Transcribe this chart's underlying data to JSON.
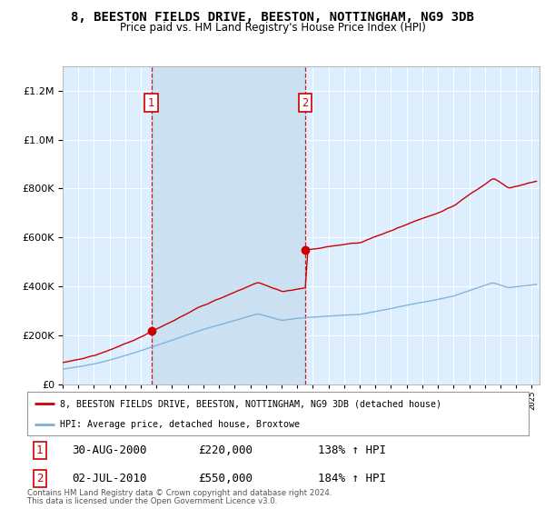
{
  "title": "8, BEESTON FIELDS DRIVE, BEESTON, NOTTINGHAM, NG9 3DB",
  "subtitle": "Price paid vs. HM Land Registry's House Price Index (HPI)",
  "hpi_label": "HPI: Average price, detached house, Broxtowe",
  "property_label": "8, BEESTON FIELDS DRIVE, BEESTON, NOTTINGHAM, NG9 3DB (detached house)",
  "footnote1": "Contains HM Land Registry data © Crown copyright and database right 2024.",
  "footnote2": "This data is licensed under the Open Government Licence v3.0.",
  "sale1_date": "30-AUG-2000",
  "sale1_price": 220000,
  "sale1_hpi": "138% ↑ HPI",
  "sale2_date": "02-JUL-2010",
  "sale2_price": 550000,
  "sale2_hpi": "184% ↑ HPI",
  "hpi_color": "#7aaed6",
  "property_color": "#cc0000",
  "background_color": "#ddeeff",
  "shade_color": "#c8dff0",
  "ylim_max": 1300000,
  "xmin": 1995.0,
  "xmax": 2025.5
}
